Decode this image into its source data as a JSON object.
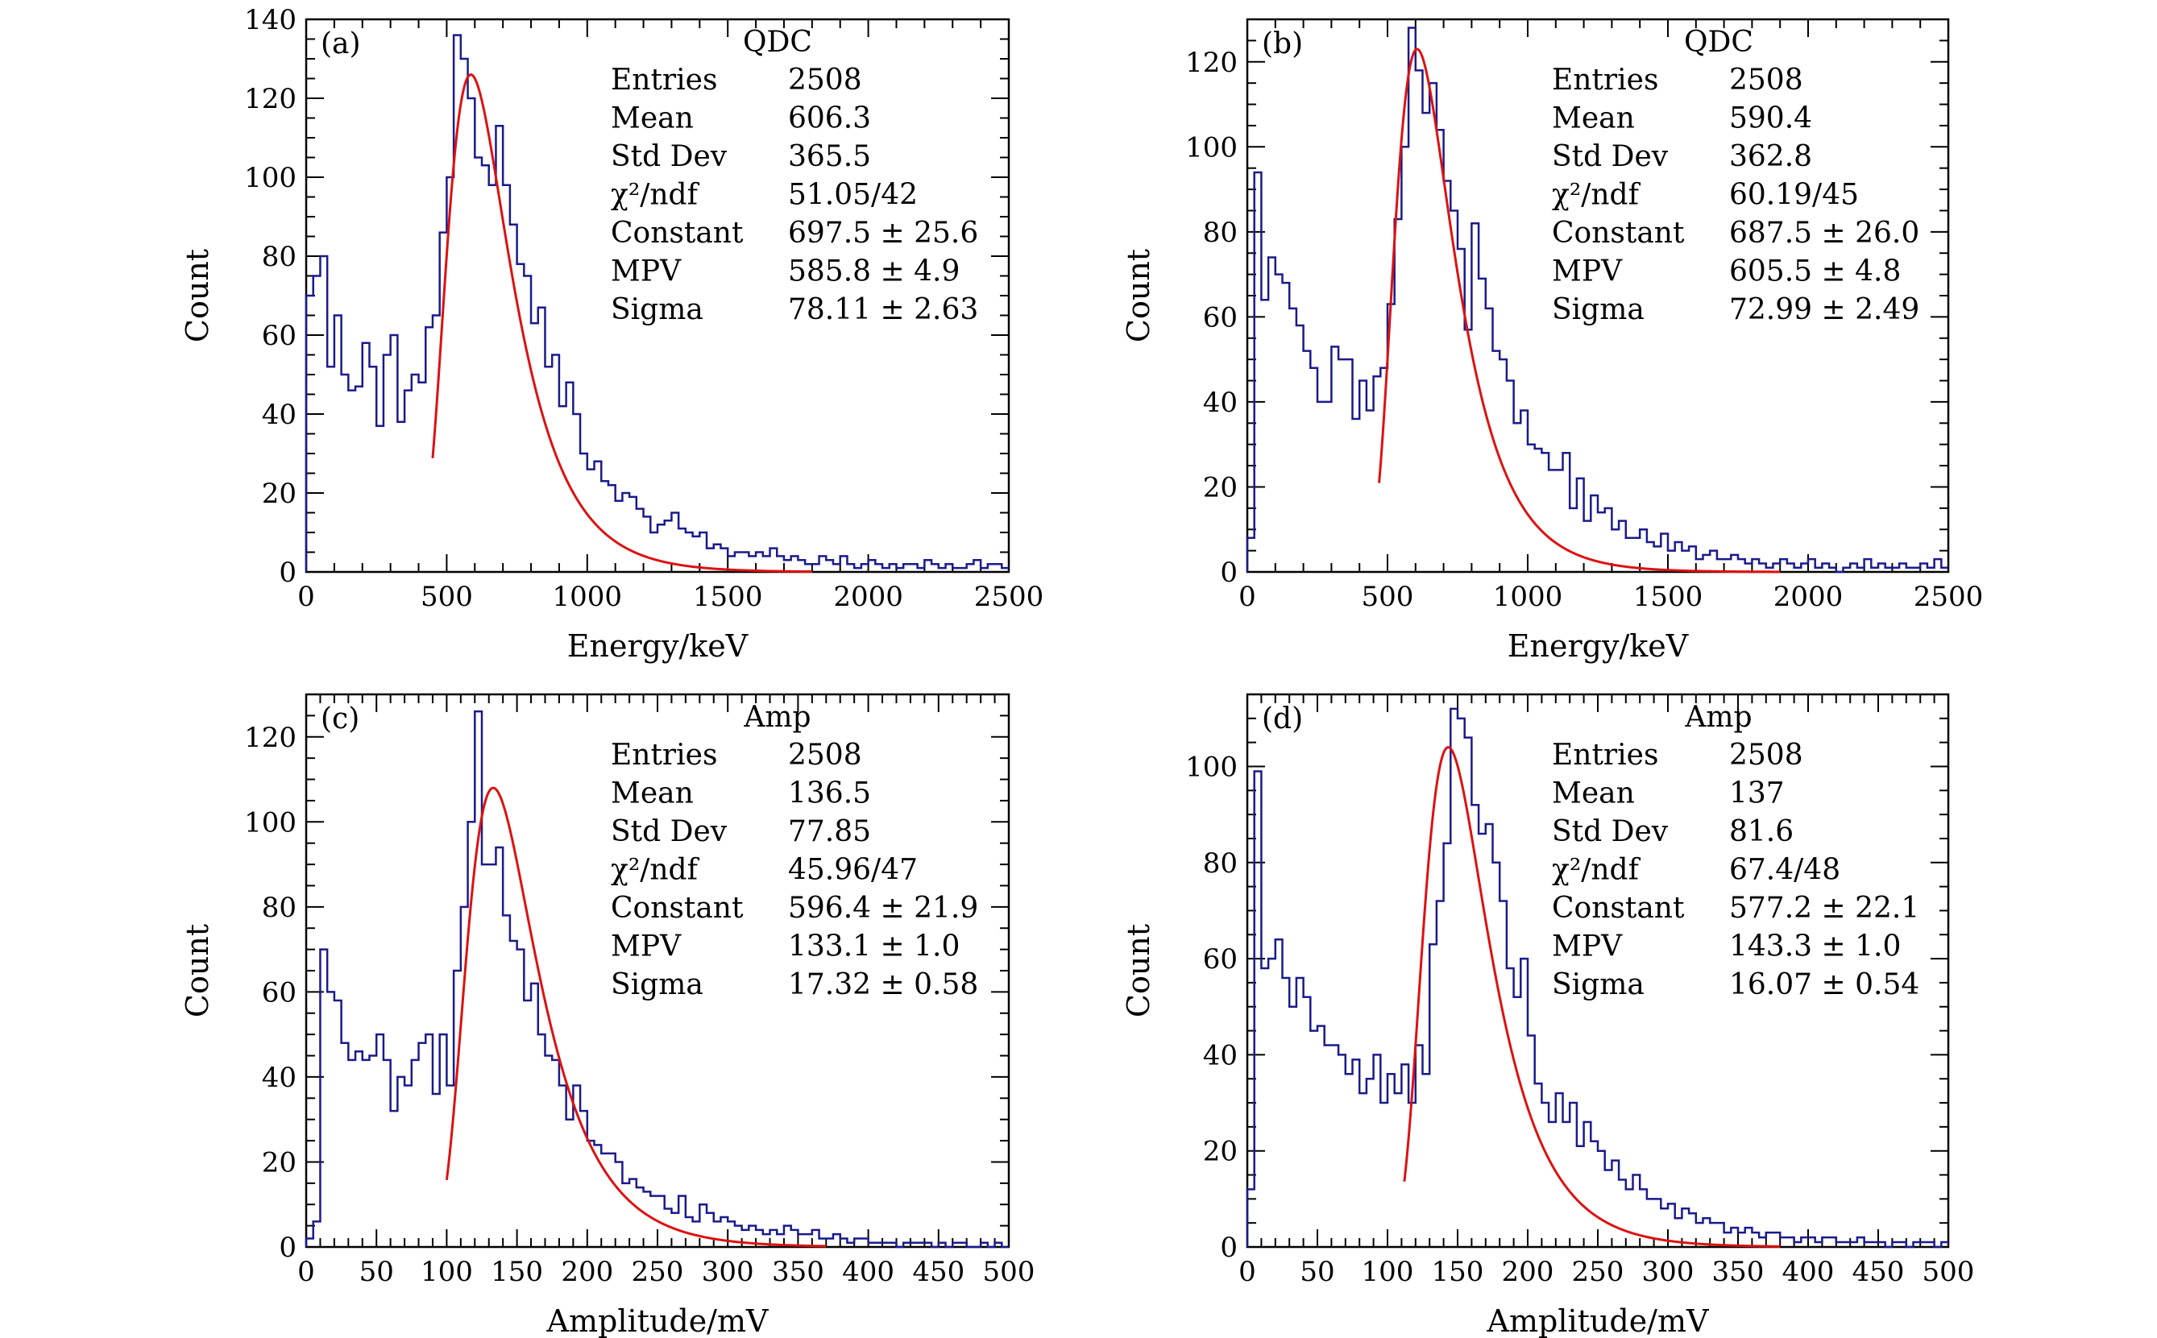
{
  "colors": {
    "histogram": "#1a1a8c",
    "fit": "#dd1111",
    "frame": "#000000",
    "background": "#ffffff"
  },
  "chart_data": [
    {
      "type": "histogram",
      "panel_label": "(a)",
      "stats_title": "QDC",
      "xlabel": "Energy/keV",
      "ylabel": "Count",
      "xlim": [
        0,
        2500
      ],
      "ylim": [
        0,
        140
      ],
      "xticks": [
        0,
        500,
        1000,
        1500,
        2000,
        2500
      ],
      "yticks": [
        0,
        20,
        40,
        60,
        80,
        100,
        120,
        140
      ],
      "stats": [
        {
          "key": "Entries",
          "value": "2508"
        },
        {
          "key": "Mean",
          "value": "606.3"
        },
        {
          "key": "Std Dev",
          "value": "365.5"
        },
        {
          "key": "χ²/ndf",
          "value": "51.05/42"
        },
        {
          "key": "Constant",
          "value": "697.5 ± 25.6"
        },
        {
          "key": "MPV",
          "value": "585.8 ± 4.9"
        },
        {
          "key": "Sigma",
          "value": "78.11 ± 2.63"
        }
      ],
      "bin_start": 0,
      "bin_width": 25,
      "counts": [
        70,
        75,
        80,
        52,
        65,
        50,
        46,
        47,
        58,
        52,
        37,
        55,
        60,
        38,
        46,
        50,
        48,
        62,
        65,
        86,
        100,
        136,
        130,
        120,
        105,
        103,
        98,
        113,
        98,
        88,
        78,
        75,
        63,
        67,
        52,
        55,
        42,
        48,
        40,
        30,
        26,
        28,
        23,
        22,
        18,
        20,
        19,
        16,
        14,
        10,
        12,
        13,
        15,
        11,
        10,
        9,
        10,
        6,
        7,
        6,
        4,
        5,
        5,
        4,
        5,
        4,
        6,
        4,
        3,
        4,
        3,
        2,
        2,
        4,
        3,
        2,
        4,
        2,
        1,
        2,
        3,
        2,
        1,
        2,
        1,
        2,
        2,
        1,
        3,
        2,
        1,
        2,
        1,
        1,
        2,
        3,
        1,
        2,
        2,
        1
      ],
      "fit": {
        "mpv": 585.8,
        "sigma": 78.11,
        "range": [
          450,
          1800
        ],
        "peak": 126
      }
    },
    {
      "type": "histogram",
      "panel_label": "(b)",
      "stats_title": "QDC",
      "xlabel": "Energy/keV",
      "ylabel": "Count",
      "xlim": [
        0,
        2500
      ],
      "ylim": [
        0,
        130
      ],
      "xticks": [
        0,
        500,
        1000,
        1500,
        2000,
        2500
      ],
      "yticks": [
        0,
        20,
        40,
        60,
        80,
        100,
        120
      ],
      "stats": [
        {
          "key": "Entries",
          "value": "2508"
        },
        {
          "key": "Mean",
          "value": "590.4"
        },
        {
          "key": "Std Dev",
          "value": "362.8"
        },
        {
          "key": "χ²/ndf",
          "value": "60.19/45"
        },
        {
          "key": "Constant",
          "value": "687.5 ± 26.0"
        },
        {
          "key": "MPV",
          "value": "605.5 ± 4.8"
        },
        {
          "key": "Sigma",
          "value": "72.99 ± 2.49"
        }
      ],
      "bin_start": 0,
      "bin_width": 25,
      "counts": [
        8,
        94,
        64,
        74,
        70,
        68,
        62,
        58,
        52,
        48,
        40,
        40,
        53,
        50,
        50,
        36,
        45,
        38,
        46,
        48,
        63,
        83,
        100,
        128,
        118,
        108,
        115,
        104,
        92,
        85,
        76,
        57,
        82,
        69,
        62,
        52,
        50,
        45,
        35,
        38,
        30,
        29,
        28,
        24,
        24,
        28,
        15,
        22,
        12,
        18,
        14,
        15,
        10,
        12,
        8,
        8,
        10,
        7,
        6,
        9,
        5,
        7,
        5,
        6,
        3,
        4,
        5,
        3,
        3,
        4,
        3,
        2,
        3,
        2,
        1,
        2,
        3,
        2,
        1,
        2,
        3,
        1,
        2,
        1,
        0,
        1,
        2,
        1,
        3,
        1,
        2,
        1,
        1,
        2,
        1,
        1,
        2,
        1,
        3,
        1
      ],
      "fit": {
        "mpv": 605.5,
        "sigma": 72.99,
        "range": [
          470,
          1900
        ],
        "peak": 123
      }
    },
    {
      "type": "histogram",
      "panel_label": "(c)",
      "stats_title": "Amp",
      "xlabel": "Amplitude/mV",
      "ylabel": "Count",
      "xlim": [
        0,
        500
      ],
      "ylim": [
        0,
        130
      ],
      "xticks": [
        0,
        50,
        100,
        150,
        200,
        250,
        300,
        350,
        400,
        450,
        500
      ],
      "yticks": [
        0,
        20,
        40,
        60,
        80,
        100,
        120
      ],
      "stats": [
        {
          "key": "Entries",
          "value": "2508"
        },
        {
          "key": "Mean",
          "value": "136.5"
        },
        {
          "key": "Std Dev",
          "value": "77.85"
        },
        {
          "key": "χ²/ndf",
          "value": "45.96/47"
        },
        {
          "key": "Constant",
          "value": "596.4 ± 21.9"
        },
        {
          "key": "MPV",
          "value": "133.1 ± 1.0"
        },
        {
          "key": "Sigma",
          "value": "17.32 ± 0.58"
        }
      ],
      "bin_start": 0,
      "bin_width": 5,
      "counts": [
        2,
        6,
        70,
        60,
        58,
        48,
        44,
        46,
        44,
        45,
        50,
        44,
        32,
        40,
        38,
        44,
        48,
        50,
        36,
        50,
        38,
        65,
        80,
        100,
        126,
        90,
        90,
        94,
        78,
        72,
        70,
        58,
        62,
        50,
        45,
        44,
        38,
        30,
        38,
        32,
        25,
        24,
        22,
        22,
        20,
        15,
        16,
        14,
        13,
        12,
        12,
        9,
        8,
        12,
        7,
        6,
        10,
        8,
        6,
        7,
        6,
        5,
        4,
        5,
        4,
        3,
        4,
        3,
        5,
        4,
        3,
        3,
        4,
        2,
        2,
        3,
        2,
        1,
        2,
        2,
        1,
        1,
        1,
        1,
        0,
        1,
        1,
        1,
        1,
        0,
        1,
        0,
        1,
        1,
        0,
        0,
        1,
        0,
        1,
        0
      ],
      "fit": {
        "mpv": 133.1,
        "sigma": 17.32,
        "range": [
          100,
          370
        ],
        "peak": 108
      }
    },
    {
      "type": "histogram",
      "panel_label": "(d)",
      "stats_title": "Amp",
      "xlabel": "Amplitude/mV",
      "ylabel": "Count",
      "xlim": [
        0,
        500
      ],
      "ylim": [
        0,
        115
      ],
      "xticks": [
        0,
        50,
        100,
        150,
        200,
        250,
        300,
        350,
        400,
        450,
        500
      ],
      "yticks": [
        0,
        20,
        40,
        60,
        80,
        100
      ],
      "stats": [
        {
          "key": "Entries",
          "value": "2508"
        },
        {
          "key": "Mean",
          "value": "137"
        },
        {
          "key": "Std Dev",
          "value": "81.6"
        },
        {
          "key": "χ²/ndf",
          "value": "67.4/48"
        },
        {
          "key": "Constant",
          "value": "577.2 ± 22.1"
        },
        {
          "key": "MPV",
          "value": "143.3 ± 1.0"
        },
        {
          "key": "Sigma",
          "value": "16.07 ± 0.54"
        }
      ],
      "bin_start": 0,
      "bin_width": 5,
      "counts": [
        12,
        99,
        58,
        60,
        64,
        56,
        50,
        56,
        52,
        45,
        46,
        42,
        42,
        40,
        36,
        39,
        32,
        35,
        40,
        30,
        36,
        32,
        38,
        30,
        42,
        36,
        63,
        72,
        84,
        112,
        110,
        106,
        92,
        86,
        88,
        80,
        72,
        58,
        52,
        60,
        44,
        34,
        30,
        26,
        32,
        26,
        30,
        21,
        26,
        22,
        20,
        16,
        18,
        14,
        12,
        15,
        12,
        10,
        10,
        8,
        9,
        6,
        8,
        7,
        5,
        6,
        5,
        5,
        3,
        4,
        3,
        4,
        3,
        2,
        3,
        3,
        2,
        2,
        1,
        2,
        2,
        1,
        2,
        2,
        1,
        1,
        1,
        2,
        1,
        1,
        1,
        0,
        1,
        1,
        0,
        1,
        1,
        1,
        0,
        1
      ],
      "fit": {
        "mpv": 143.3,
        "sigma": 16.07,
        "range": [
          112,
          380
        ],
        "peak": 104
      }
    }
  ]
}
